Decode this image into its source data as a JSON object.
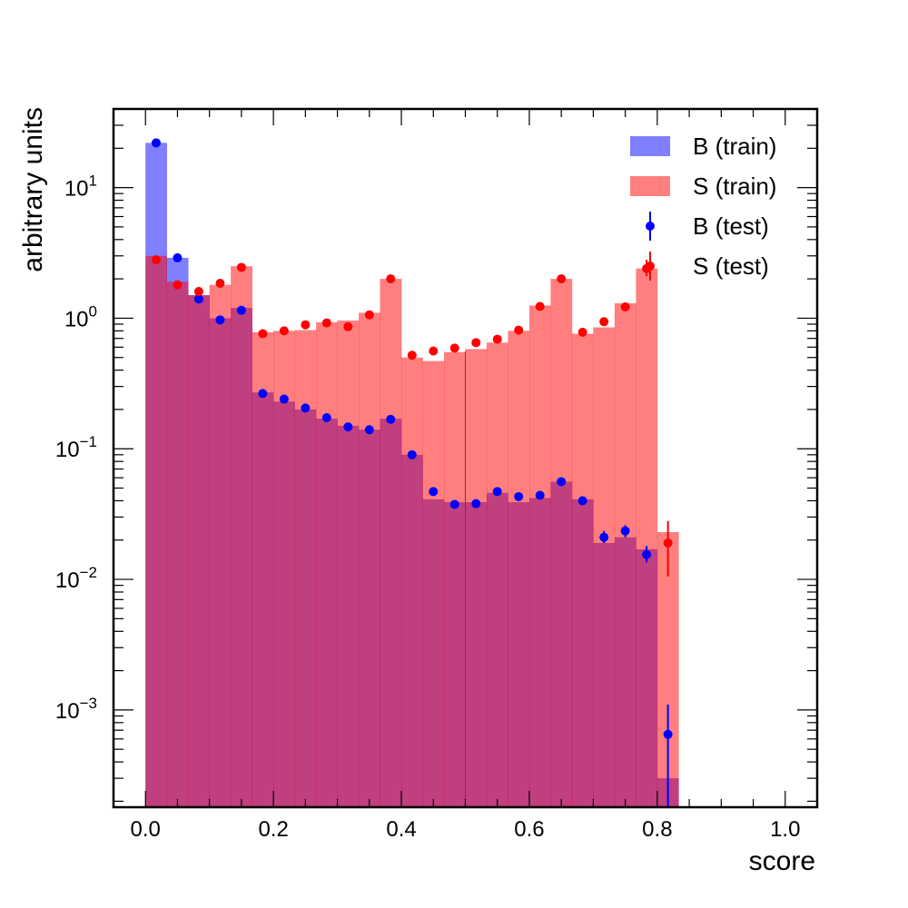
{
  "chart_data": {
    "type": "bar",
    "title": "",
    "xlabel": "score",
    "ylabel": "arbitrary units",
    "xlim": [
      -0.05,
      1.05
    ],
    "ylim": [
      0.00018,
      40
    ],
    "yscale": "log",
    "grid": false,
    "legend_position": "top-right",
    "x_ticks": [
      "0.0",
      "0.2",
      "0.4",
      "0.6",
      "0.8",
      "1.0"
    ],
    "y_ticks": [
      {
        "base": "10",
        "exp": "1"
      },
      {
        "base": "10",
        "exp": "0"
      },
      {
        "base": "10",
        "exp": "−1"
      },
      {
        "base": "10",
        "exp": "−2"
      },
      {
        "base": "10",
        "exp": "−3"
      }
    ],
    "bin_edges": [
      0.0,
      0.0333,
      0.0667,
      0.1,
      0.1333,
      0.1667,
      0.2,
      0.2333,
      0.2667,
      0.3,
      0.3333,
      0.3667,
      0.4,
      0.4333,
      0.4667,
      0.5,
      0.5333,
      0.5667,
      0.6,
      0.6333,
      0.6667,
      0.7,
      0.7333,
      0.7667,
      0.8,
      0.8333
    ],
    "bin_centers": [
      0.0167,
      0.05,
      0.0833,
      0.1167,
      0.15,
      0.1833,
      0.2167,
      0.25,
      0.2833,
      0.3167,
      0.35,
      0.3833,
      0.4167,
      0.45,
      0.4833,
      0.5167,
      0.55,
      0.5833,
      0.6167,
      0.65,
      0.6833,
      0.7167,
      0.75,
      0.7833,
      0.8167
    ],
    "series": [
      {
        "name": "B (train)",
        "kind": "filled-histogram",
        "color": "#0000ff",
        "opacity": 0.5,
        "values": [
          22,
          2.9,
          1.5,
          1.0,
          1.2,
          0.27,
          0.23,
          0.2,
          0.17,
          0.15,
          0.14,
          0.17,
          0.09,
          0.041,
          0.039,
          0.039,
          0.046,
          0.039,
          0.042,
          0.056,
          0.041,
          0.019,
          0.021,
          0.017,
          0.0003
        ]
      },
      {
        "name": "S (train)",
        "kind": "filled-histogram",
        "color": "#ff0000",
        "opacity": 0.5,
        "values": [
          3.0,
          1.9,
          1.5,
          1.8,
          2.5,
          0.78,
          0.8,
          0.81,
          0.93,
          0.96,
          1.1,
          2.0,
          0.5,
          0.47,
          0.55,
          0.58,
          0.65,
          0.8,
          1.25,
          2.0,
          0.76,
          0.85,
          1.3,
          2.4,
          0.023
        ]
      },
      {
        "name": "B (test)",
        "kind": "errorbar",
        "color": "#0000ff",
        "values": [
          22,
          2.9,
          1.4,
          0.97,
          1.15,
          0.265,
          0.24,
          0.205,
          0.173,
          0.147,
          0.14,
          0.168,
          0.09,
          0.047,
          0.0375,
          0.038,
          0.047,
          0.043,
          0.044,
          0.056,
          0.04,
          0.021,
          0.0235,
          0.0155,
          0.00065
        ],
        "err_low": [
          22,
          2.9,
          1.4,
          0.97,
          1.15,
          0.265,
          0.24,
          0.205,
          0.173,
          0.147,
          0.14,
          0.168,
          0.09,
          0.047,
          0.0375,
          0.038,
          0.047,
          0.043,
          0.044,
          0.056,
          0.04,
          0.019,
          0.021,
          0.0135,
          0.00018
        ],
        "err_high": [
          22,
          2.9,
          1.4,
          0.97,
          1.15,
          0.265,
          0.24,
          0.205,
          0.173,
          0.147,
          0.14,
          0.168,
          0.09,
          0.047,
          0.0375,
          0.038,
          0.047,
          0.043,
          0.044,
          0.056,
          0.04,
          0.0235,
          0.026,
          0.018,
          0.0011
        ]
      },
      {
        "name": "S (test)",
        "kind": "errorbar",
        "color": "#ff0000",
        "values": [
          2.8,
          1.8,
          1.6,
          1.85,
          2.45,
          0.76,
          0.8,
          0.89,
          0.92,
          0.86,
          1.06,
          2.0,
          0.52,
          0.56,
          0.59,
          0.65,
          0.69,
          0.81,
          1.23,
          2.0,
          0.78,
          0.94,
          1.22,
          2.4,
          0.019
        ],
        "err_low": [
          2.8,
          1.8,
          1.6,
          1.85,
          2.45,
          0.76,
          0.8,
          0.89,
          0.92,
          0.86,
          1.06,
          2.0,
          0.52,
          0.56,
          0.59,
          0.65,
          0.69,
          0.81,
          1.23,
          2.0,
          0.78,
          0.94,
          1.22,
          2.1,
          0.0105
        ],
        "err_high": [
          2.8,
          1.8,
          1.6,
          1.85,
          2.45,
          0.76,
          0.8,
          0.89,
          0.92,
          0.86,
          1.06,
          2.0,
          0.52,
          0.56,
          0.59,
          0.65,
          0.69,
          0.81,
          1.23,
          2.0,
          0.78,
          0.94,
          1.22,
          2.8,
          0.028
        ]
      }
    ]
  }
}
